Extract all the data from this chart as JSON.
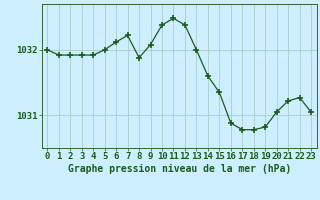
{
  "x": [
    0,
    1,
    2,
    3,
    4,
    5,
    6,
    7,
    8,
    9,
    10,
    11,
    12,
    13,
    14,
    15,
    16,
    17,
    18,
    19,
    20,
    21,
    22,
    23
  ],
  "y": [
    1032.0,
    1031.92,
    1031.92,
    1031.92,
    1031.92,
    1032.0,
    1032.12,
    1032.22,
    1031.88,
    1032.08,
    1032.38,
    1032.48,
    1032.38,
    1032.0,
    1031.6,
    1031.35,
    1030.88,
    1030.78,
    1030.78,
    1030.82,
    1031.05,
    1031.22,
    1031.27,
    1031.05
  ],
  "line_color": "#1a5c1a",
  "marker": "+",
  "marker_size": 4,
  "marker_lw": 1.2,
  "bg_color": "#cceeff",
  "grid_color": "#aacccc",
  "xlabel": "Graphe pression niveau de la mer (hPa)",
  "ytick_positions": [
    1031,
    1032
  ],
  "xlim": [
    -0.5,
    23.5
  ],
  "ylim": [
    1030.5,
    1032.7
  ],
  "label_fontsize": 7,
  "tick_fontsize": 6.5
}
